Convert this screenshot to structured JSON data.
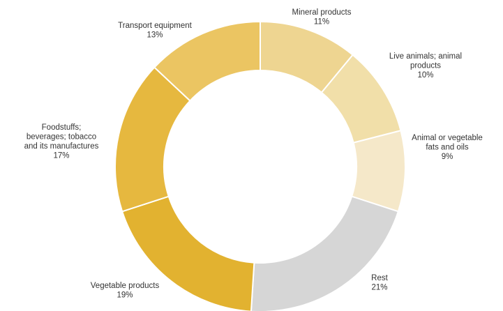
{
  "chart_data": {
    "type": "pie",
    "donut": true,
    "start_angle_deg": -90,
    "slices": [
      {
        "name": "Mineral products",
        "value": 11,
        "label_lines": [
          "Mineral products"
        ],
        "pct": "11%",
        "color": "#eed591"
      },
      {
        "name": "Live animals; animal products",
        "value": 10,
        "label_lines": [
          "Live animals; animal",
          "products"
        ],
        "pct": "10%",
        "color": "#f1dfa9"
      },
      {
        "name": "Animal or vegetable fats and oils",
        "value": 9,
        "label_lines": [
          "Animal or vegetable",
          "fats and oils"
        ],
        "pct": "9%",
        "color": "#f5e8c9"
      },
      {
        "name": "Rest",
        "value": 21,
        "label_lines": [
          "Rest"
        ],
        "pct": "21%",
        "color": "#d6d6d6"
      },
      {
        "name": "Vegetable products",
        "value": 19,
        "label_lines": [
          "Vegetable products"
        ],
        "pct": "19%",
        "color": "#e2b230"
      },
      {
        "name": "Foodstuffs; beverages; tobacco and its manufactures",
        "value": 17,
        "label_lines": [
          "Foodstuffs;",
          "beverages; tobacco",
          "and its manufactures"
        ],
        "pct": "17%",
        "color": "#e6b83f"
      },
      {
        "name": "Transport equipment",
        "value": 13,
        "label_lines": [
          "Transport equipment"
        ],
        "pct": "13%",
        "color": "#ebc562"
      }
    ]
  }
}
